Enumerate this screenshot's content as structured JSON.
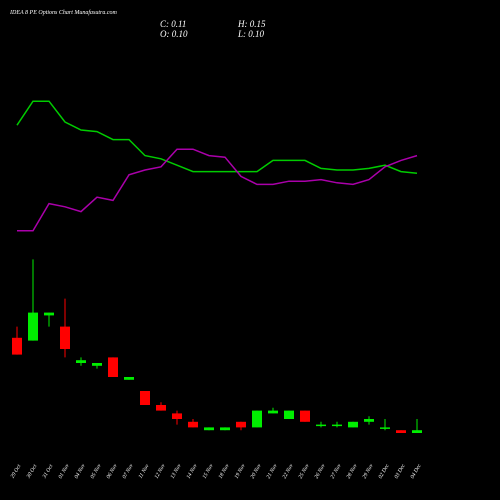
{
  "chart_data": {
    "type": "candlestick",
    "title": "IDEA 8 PE Options Chart Munafasutra.com",
    "summary": [
      "C: 0.11",
      "H: 0.15",
      "O: 0.10",
      "L: 0.10"
    ],
    "categories": [
      "29 Oct",
      "30 Oct",
      "31 Oct",
      "01 Nov",
      "04 Nov",
      "05 Nov",
      "06 Nov",
      "07 Nov",
      "11 Nov",
      "12 Nov",
      "13 Nov",
      "14 Nov",
      "15 Nov",
      "18 Nov",
      "19 Nov",
      "20 Nov",
      "21 Nov",
      "22 Nov",
      "25 Nov",
      "26 Nov",
      "27 Nov",
      "28 Nov",
      "29 Nov",
      "02 Dec",
      "03 Dec",
      "04 Dec"
    ],
    "open": [
      0.44,
      0.43,
      0.52,
      0.48,
      0.35,
      0.34,
      0.37,
      0.29,
      0.25,
      0.2,
      0.17,
      0.14,
      0.11,
      0.11,
      0.14,
      0.12,
      0.17,
      0.15,
      0.18,
      0.13,
      0.13,
      0.12,
      0.14,
      0.12,
      0.11,
      0.1
    ],
    "high": [
      0.48,
      0.72,
      0.53,
      0.58,
      0.37,
      0.35,
      0.37,
      0.3,
      0.25,
      0.21,
      0.18,
      0.15,
      0.12,
      0.12,
      0.14,
      0.18,
      0.19,
      0.18,
      0.18,
      0.14,
      0.14,
      0.14,
      0.16,
      0.15,
      0.11,
      0.15
    ],
    "low": [
      0.38,
      0.43,
      0.48,
      0.37,
      0.34,
      0.33,
      0.3,
      0.29,
      0.2,
      0.18,
      0.13,
      0.12,
      0.11,
      0.11,
      0.11,
      0.12,
      0.17,
      0.15,
      0.14,
      0.12,
      0.12,
      0.12,
      0.13,
      0.11,
      0.1,
      0.1
    ],
    "close": [
      0.38,
      0.53,
      0.53,
      0.4,
      0.36,
      0.35,
      0.3,
      0.3,
      0.2,
      0.18,
      0.15,
      0.12,
      0.12,
      0.12,
      0.12,
      0.18,
      0.18,
      0.18,
      0.14,
      0.13,
      0.13,
      0.14,
      0.15,
      0.12,
      0.1,
      0.11
    ],
    "up_color": "#00ee00",
    "down_color": "#ff0000",
    "ylim": [
      0,
      1.2
    ],
    "y2lim": [
      0,
      100
    ],
    "lines": [
      {
        "color": "#00cc00",
        "axis": "y2",
        "values": [
          78,
          93,
          93,
          80,
          75,
          74,
          69,
          69,
          59,
          57,
          53,
          49,
          49,
          49,
          49,
          49,
          56,
          56,
          56,
          51,
          50,
          50,
          51,
          53,
          49,
          48
        ]
      },
      {
        "color": "#aa00aa",
        "axis": "y2",
        "values": [
          12,
          12,
          29,
          27,
          24,
          33,
          31,
          47,
          50,
          52,
          63,
          63,
          59,
          58,
          46,
          41,
          41,
          43,
          43,
          44,
          42,
          41,
          44,
          52,
          56,
          59
        ]
      }
    ]
  }
}
